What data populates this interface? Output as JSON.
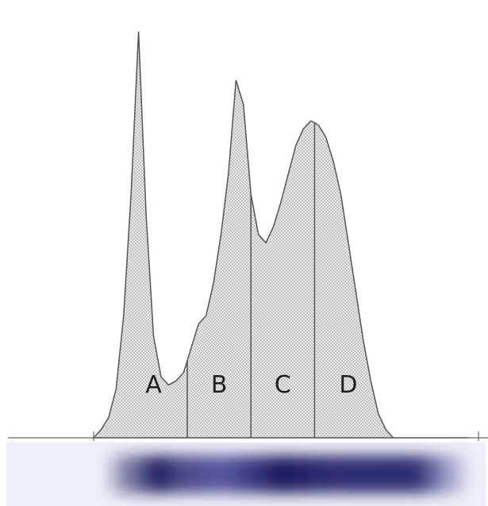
{
  "chart_data": {
    "type": "area",
    "title": "",
    "xlabel": "",
    "ylabel": "",
    "x": [
      0,
      2,
      4,
      6,
      8,
      10,
      12,
      14,
      16,
      18,
      20,
      22,
      24,
      26,
      28,
      30,
      32,
      34,
      36,
      38,
      40,
      42,
      44,
      46,
      48,
      50,
      52,
      54,
      56,
      58,
      60,
      62,
      64,
      66,
      68,
      70,
      72,
      74,
      76,
      78,
      80,
      82,
      84,
      86,
      88,
      90,
      92,
      94,
      96,
      98,
      100
    ],
    "y": [
      0,
      2,
      5,
      12,
      30,
      60,
      100,
      55,
      25,
      15,
      13,
      14,
      16,
      22,
      28,
      30,
      38,
      50,
      65,
      88,
      82,
      60,
      50,
      48,
      52,
      58,
      65,
      72,
      76,
      78,
      77,
      74,
      68,
      60,
      48,
      36,
      24,
      14,
      6,
      2,
      0,
      0,
      0,
      0,
      0,
      0,
      0,
      0,
      0,
      0,
      0
    ],
    "xlim": [
      0,
      100
    ],
    "ylim": [
      0,
      105
    ],
    "grid": false,
    "segments": [
      {
        "label": "A",
        "from": 7,
        "to": 25
      },
      {
        "label": "B",
        "from": 25,
        "to": 42
      },
      {
        "label": "C",
        "from": 42,
        "to": 59
      },
      {
        "label": "D",
        "from": 59,
        "to": 100
      }
    ]
  },
  "colors": {
    "fill": "#e6e6e6",
    "dots": "#9a9a9a",
    "line": "#555555",
    "band": "#1c1a5e"
  }
}
